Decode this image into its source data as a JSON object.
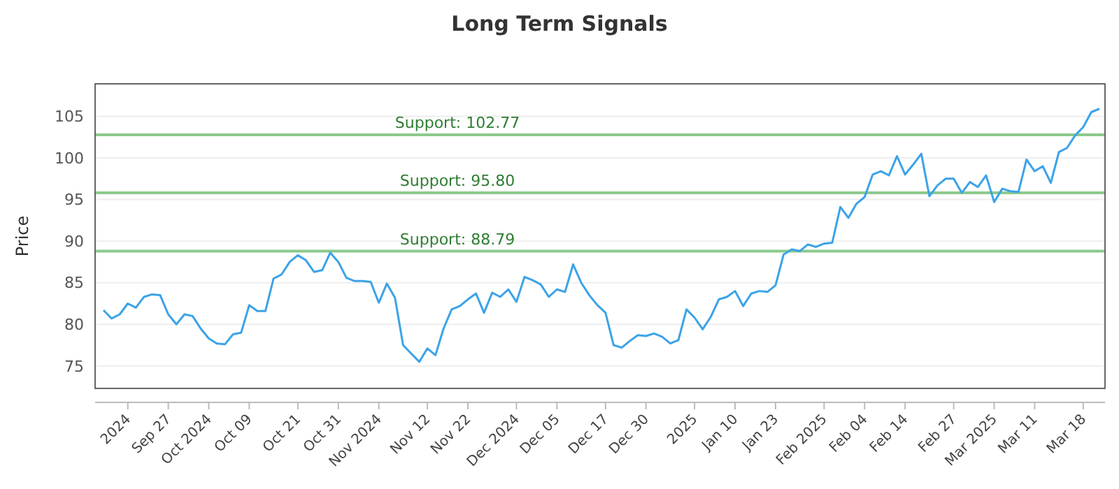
{
  "chart_data": {
    "type": "line",
    "title": "Long Term Signals",
    "ylabel": "Price",
    "categories": [
      null,
      null,
      null,
      "2024",
      null,
      null,
      null,
      null,
      "Sep 27",
      null,
      null,
      null,
      null,
      "Oct 2024",
      null,
      null,
      null,
      null,
      "Oct 09",
      null,
      null,
      null,
      null,
      null,
      "Oct 21",
      null,
      null,
      null,
      null,
      "Oct 31",
      null,
      null,
      null,
      null,
      "Nov 2024",
      null,
      null,
      null,
      null,
      null,
      "Nov 12",
      null,
      null,
      null,
      null,
      "Nov 22",
      null,
      null,
      null,
      null,
      null,
      "Dec 2024",
      null,
      null,
      null,
      null,
      "Dec 05",
      null,
      null,
      null,
      null,
      null,
      "Dec 17",
      null,
      null,
      null,
      null,
      "Dec 30",
      null,
      null,
      null,
      null,
      null,
      "2025",
      null,
      null,
      null,
      null,
      "Jan 10",
      null,
      null,
      null,
      null,
      "Jan 23",
      null,
      null,
      null,
      null,
      null,
      "Feb 2025",
      null,
      null,
      null,
      null,
      "Feb 04",
      null,
      null,
      null,
      null,
      "Feb 14",
      null,
      null,
      null,
      null,
      null,
      "Feb 27",
      null,
      null,
      null,
      null,
      "Mar 2025",
      null,
      null,
      null,
      null,
      "Mar 11",
      null,
      null,
      null,
      null,
      null,
      "Mar 18",
      null,
      null
    ],
    "series": [
      {
        "color": "#3ba3e8",
        "values": [
          81.7,
          80.7,
          81.2,
          82.5,
          82.0,
          83.3,
          83.6,
          83.5,
          81.2,
          80.0,
          81.2,
          81.0,
          79.5,
          78.3,
          77.7,
          77.6,
          78.8,
          79.0,
          82.3,
          81.6,
          81.6,
          85.5,
          86.0,
          87.5,
          88.3,
          87.7,
          86.3,
          86.5,
          88.6,
          87.5,
          85.6,
          85.2,
          85.2,
          85.1,
          82.6,
          84.9,
          83.2,
          77.5,
          76.5,
          75.5,
          77.1,
          76.3,
          79.5,
          81.8,
          82.2,
          83.0,
          83.7,
          81.4,
          83.8,
          83.3,
          84.2,
          82.7,
          85.7,
          85.3,
          84.8,
          83.3,
          84.2,
          83.9,
          87.2,
          85.0,
          83.5,
          82.3,
          81.4,
          77.5,
          77.2,
          78.0,
          78.7,
          78.6,
          78.9,
          78.5,
          77.7,
          78.1,
          81.8,
          80.8,
          79.4,
          80.9,
          83.0,
          83.3,
          84.0,
          82.2,
          83.7,
          84.0,
          83.9,
          84.7,
          88.4,
          89.0,
          88.8,
          89.6,
          89.3,
          89.7,
          89.8,
          94.1,
          92.8,
          94.5,
          95.3,
          98.0,
          98.4,
          97.9,
          100.2,
          98.0,
          99.2,
          100.5,
          95.4,
          96.7,
          97.5,
          97.5,
          95.8,
          97.1,
          96.5,
          97.9,
          94.7,
          96.3,
          96.0,
          95.9,
          99.8,
          98.4,
          99.0,
          97.0,
          100.7,
          101.2,
          102.7,
          103.7,
          105.5,
          105.9
        ]
      }
    ],
    "ylim": [
      72.3,
      108.9
    ],
    "yticks": [
      75,
      80,
      85,
      90,
      95,
      100,
      105
    ],
    "grid": "y",
    "marker": "none",
    "line_style": "solid",
    "ref_lines": [
      {
        "axis": "y",
        "value": 102.77,
        "label": "Support: 102.77",
        "color": "#8cc98c"
      },
      {
        "axis": "y",
        "value": 95.8,
        "label": "Support: 95.80",
        "color": "#8cc98c"
      },
      {
        "axis": "y",
        "value": 88.79,
        "label": "Support: 88.79",
        "color": "#8cc98c"
      }
    ]
  }
}
